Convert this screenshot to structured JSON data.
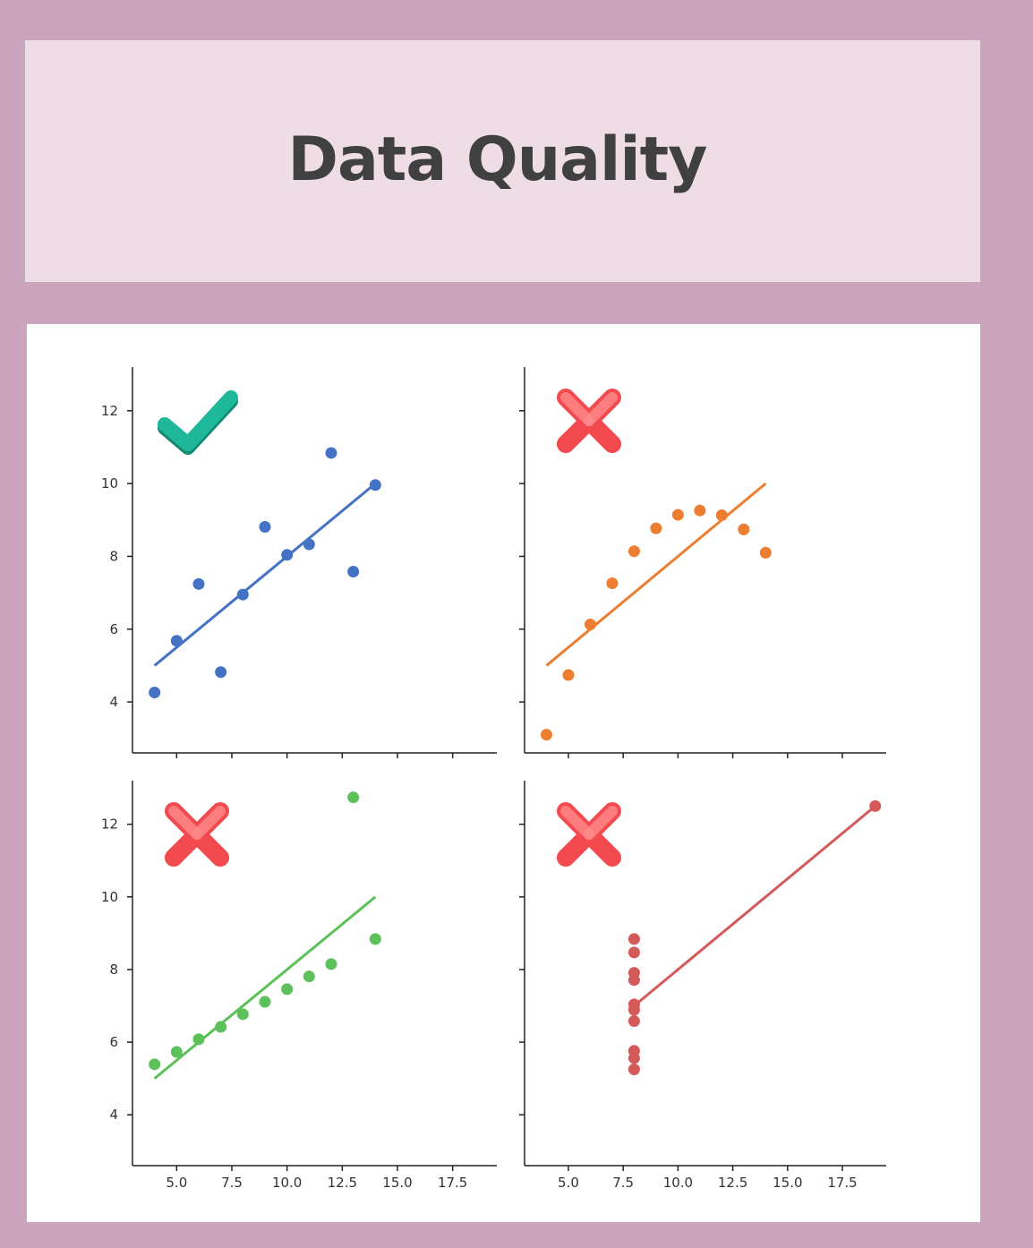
{
  "header": {
    "title": "Data Quality"
  },
  "colors": {
    "background": "#cba5bd",
    "title_band": "#efdde6",
    "title_text": "#404040",
    "good_mark": "#1fb89a",
    "bad_mark": "#f24a4f"
  },
  "chart_data": [
    {
      "type": "scatter",
      "title": "",
      "xlabel": "",
      "ylabel": "",
      "status_icon": "checkmark-icon",
      "color": "#4472c4",
      "xlim": [
        3,
        19.5
      ],
      "ylim": [
        2.6,
        13.2
      ],
      "xticks": [
        5,
        7.5,
        10,
        12.5,
        15,
        17.5
      ],
      "xtick_labels_shown": false,
      "yticks": [
        4,
        6,
        8,
        10,
        12
      ],
      "ytick_labels": [
        "4",
        "6",
        "8",
        "10",
        "12"
      ],
      "x": [
        10,
        8,
        13,
        9,
        11,
        14,
        6,
        4,
        12,
        7,
        5
      ],
      "y": [
        8.04,
        6.95,
        7.58,
        8.81,
        8.33,
        9.96,
        7.24,
        4.26,
        10.84,
        4.82,
        5.68
      ],
      "fit_line": {
        "x": [
          4,
          14
        ],
        "y": [
          5.0,
          10.0
        ]
      }
    },
    {
      "type": "scatter",
      "title": "",
      "xlabel": "",
      "ylabel": "",
      "status_icon": "cross-icon",
      "color": "#ed7d31",
      "xlim": [
        3,
        19.5
      ],
      "ylim": [
        2.6,
        13.2
      ],
      "xticks": [
        5,
        7.5,
        10,
        12.5,
        15,
        17.5
      ],
      "xtick_labels_shown": false,
      "yticks": [
        4,
        6,
        8,
        10,
        12
      ],
      "ytick_labels_shown": false,
      "x": [
        10,
        8,
        13,
        9,
        11,
        14,
        6,
        4,
        12,
        7,
        5
      ],
      "y": [
        9.14,
        8.14,
        8.74,
        8.77,
        9.26,
        8.1,
        6.13,
        3.1,
        9.13,
        7.26,
        4.74
      ],
      "fit_line": {
        "x": [
          4,
          14
        ],
        "y": [
          5.0,
          10.0
        ]
      }
    },
    {
      "type": "scatter",
      "title": "",
      "xlabel": "",
      "ylabel": "",
      "status_icon": "cross-icon",
      "color": "#5cc15a",
      "xlim": [
        3,
        19.5
      ],
      "ylim": [
        2.6,
        13.2
      ],
      "xticks": [
        5,
        7.5,
        10,
        12.5,
        15,
        17.5
      ],
      "xtick_labels": [
        "5.0",
        "7.5",
        "10.0",
        "12.5",
        "15.0",
        "17.5"
      ],
      "yticks": [
        4,
        6,
        8,
        10,
        12
      ],
      "ytick_labels": [
        "4",
        "6",
        "8",
        "10",
        "12"
      ],
      "x": [
        10,
        8,
        13,
        9,
        11,
        14,
        6,
        4,
        12,
        7,
        5
      ],
      "y": [
        7.46,
        6.77,
        12.74,
        7.11,
        7.81,
        8.84,
        6.08,
        5.39,
        8.15,
        6.42,
        5.73
      ],
      "fit_line": {
        "x": [
          4,
          14
        ],
        "y": [
          5.0,
          10.0
        ]
      }
    },
    {
      "type": "scatter",
      "title": "",
      "xlabel": "",
      "ylabel": "",
      "status_icon": "cross-icon",
      "color": "#d45a5a",
      "xlim": [
        3,
        19.5
      ],
      "ylim": [
        2.6,
        13.2
      ],
      "xticks": [
        5,
        7.5,
        10,
        12.5,
        15,
        17.5
      ],
      "xtick_labels": [
        "5.0",
        "7.5",
        "10.0",
        "12.5",
        "15.0",
        "17.5"
      ],
      "yticks": [
        4,
        6,
        8,
        10,
        12
      ],
      "ytick_labels_shown": false,
      "x": [
        8,
        8,
        8,
        8,
        8,
        8,
        8,
        19,
        8,
        8,
        8
      ],
      "y": [
        6.58,
        5.76,
        7.71,
        8.84,
        8.47,
        7.04,
        5.25,
        12.5,
        5.56,
        7.91,
        6.89
      ],
      "fit_line": {
        "x": [
          8,
          19
        ],
        "y": [
          7.0,
          12.5
        ]
      }
    }
  ]
}
